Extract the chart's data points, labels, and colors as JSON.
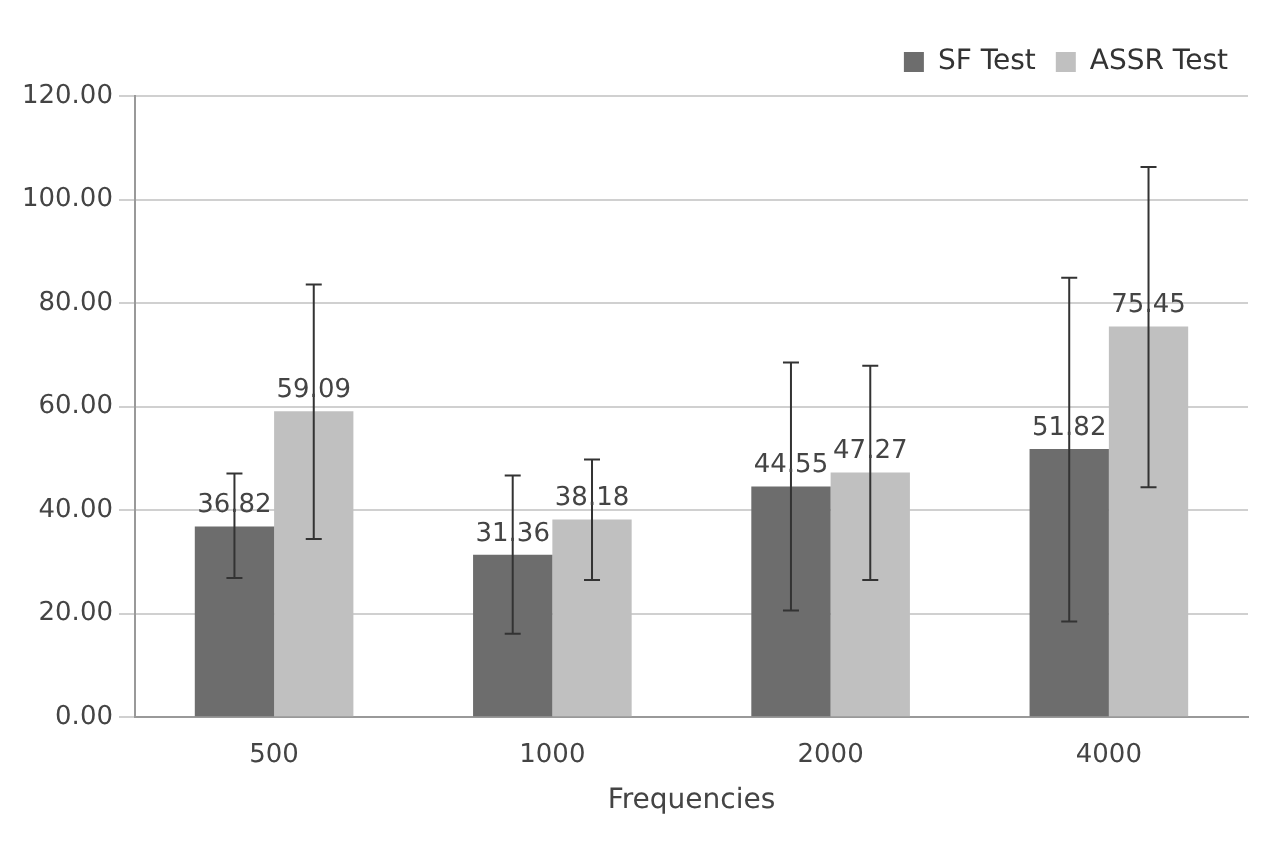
{
  "chart_data": {
    "type": "bar",
    "xlabel": "Frequencies",
    "categories": [
      "500",
      "1000",
      "2000",
      "4000"
    ],
    "series": [
      {
        "name": "SF Test",
        "color": "#6d6d6d",
        "values": [
          36.82,
          31.36,
          44.55,
          51.82
        ],
        "errors": [
          [
            26.9,
            47.1
          ],
          [
            16.1,
            46.7
          ],
          [
            20.6,
            68.5
          ],
          [
            18.5,
            84.9
          ]
        ]
      },
      {
        "name": "ASSR Test",
        "color": "#c0c0c0",
        "values": [
          59.09,
          38.18,
          47.27,
          75.45
        ],
        "errors": [
          [
            34.4,
            83.6
          ],
          [
            26.5,
            49.8
          ],
          [
            26.5,
            67.9
          ],
          [
            44.4,
            106.3
          ]
        ]
      }
    ],
    "ylim": [
      0,
      120
    ],
    "yticks": [
      {
        "value": 0,
        "label": "0.00"
      },
      {
        "value": 20,
        "label": "20.00"
      },
      {
        "value": 40,
        "label": "40.00"
      },
      {
        "value": 60,
        "label": "60.00"
      },
      {
        "value": 80,
        "label": "80.00"
      },
      {
        "value": 100,
        "label": "100.00"
      },
      {
        "value": 120,
        "label": "120.00"
      }
    ],
    "grid": "y",
    "legend": "top right",
    "data_labels": true
  }
}
